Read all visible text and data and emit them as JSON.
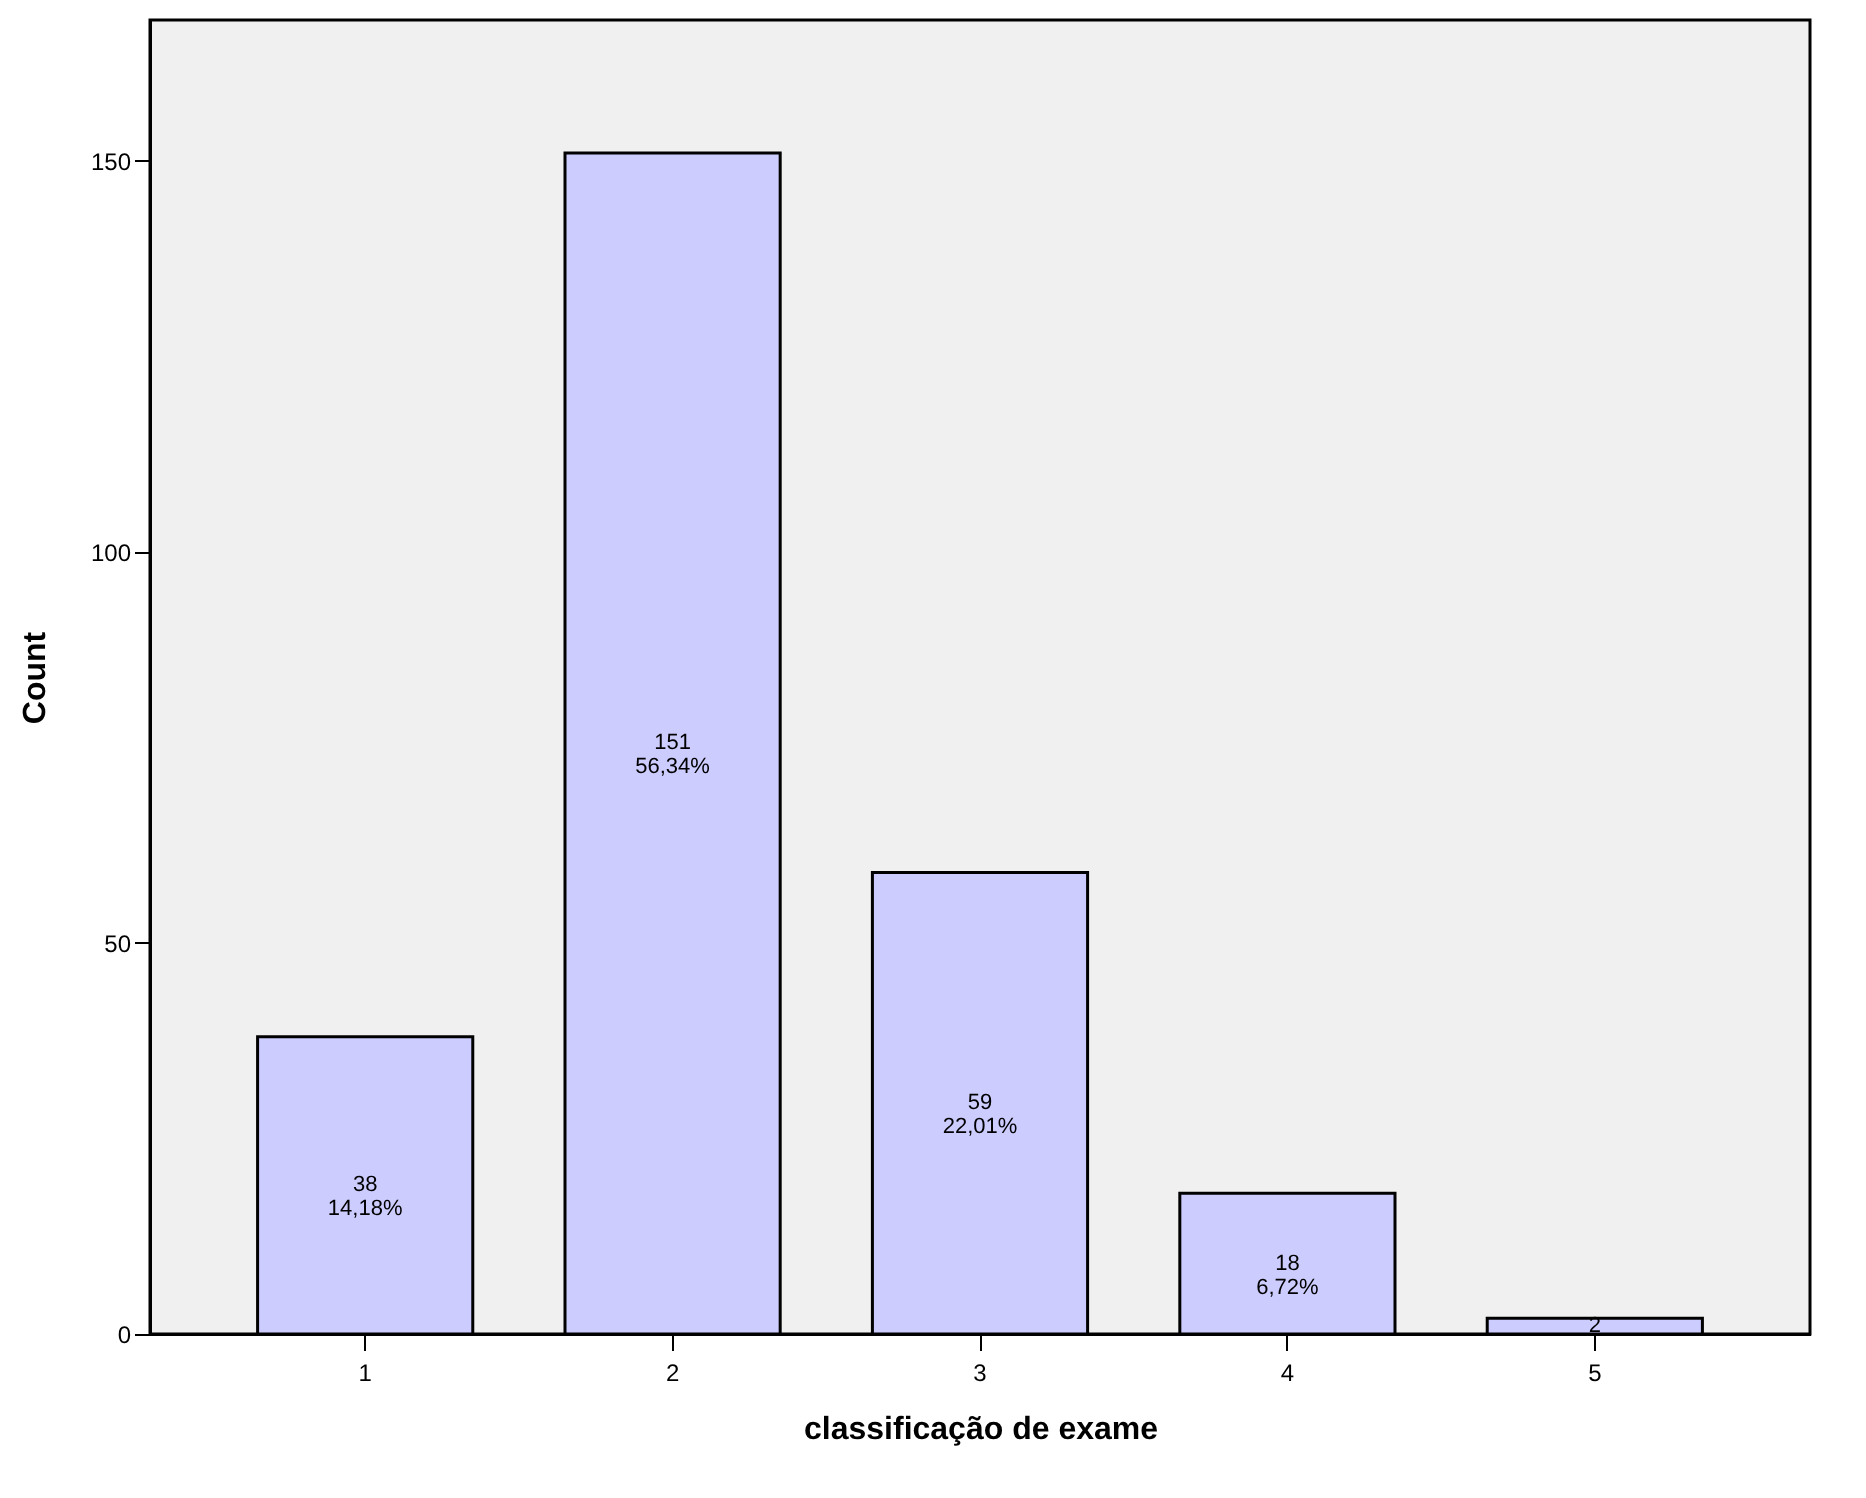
{
  "chart_data": {
    "type": "bar",
    "xlabel": "classificação de exame",
    "ylabel": "Count",
    "categories": [
      "1",
      "2",
      "3",
      "4",
      "5"
    ],
    "values": [
      38,
      151,
      59,
      18,
      2
    ],
    "value_labels": [
      "38\n14,18%",
      "151\n56,34%",
      "59\n22,01%",
      "18\n6,72%",
      "2"
    ],
    "color": "#ccccff",
    "ylim": [
      0,
      168
    ],
    "yticks": [
      0,
      50,
      100,
      150
    ],
    "grid": false
  }
}
